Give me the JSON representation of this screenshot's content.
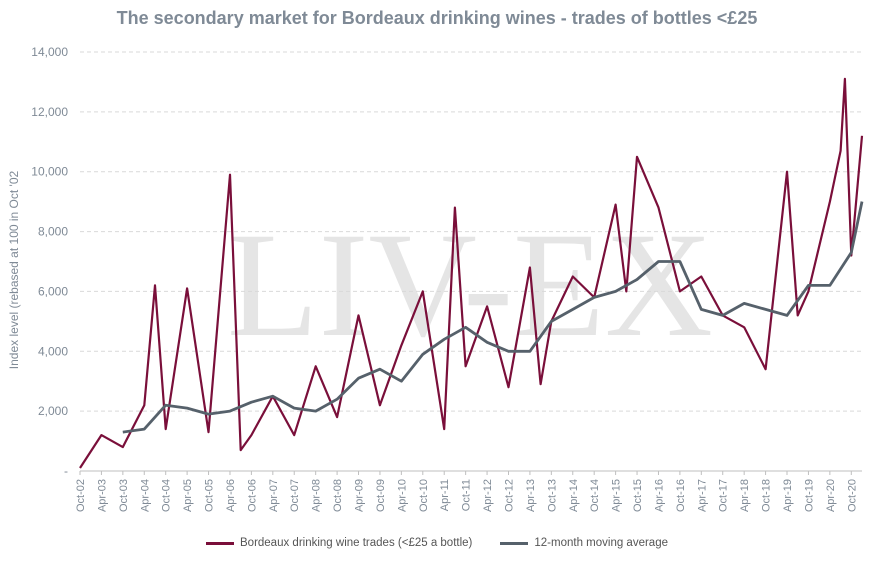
{
  "chart_data": {
    "type": "line",
    "title": "The secondary market for Bordeaux drinking wines - trades of bottles <£25",
    "ylabel": "Index level (rebased at 100 in Oct '02",
    "xlabel": "",
    "ylim": [
      0,
      14000
    ],
    "y_ticks": [
      "-",
      "2,000",
      "4,000",
      "6,000",
      "8,000",
      "10,000",
      "12,000",
      "14,000"
    ],
    "x_ticks": [
      "Oct-02",
      "Apr-03",
      "Oct-03",
      "Apr-04",
      "Oct-04",
      "Apr-05",
      "Oct-05",
      "Apr-06",
      "Oct-06",
      "Apr-07",
      "Oct-07",
      "Apr-08",
      "Oct-08",
      "Apr-09",
      "Oct-09",
      "Apr-10",
      "Oct-10",
      "Apr-11",
      "Oct-11",
      "Apr-12",
      "Oct-12",
      "Apr-13",
      "Oct-13",
      "Apr-14",
      "Oct-14",
      "Apr-15",
      "Oct-15",
      "Apr-16",
      "Oct-16",
      "Apr-17",
      "Oct-17",
      "Apr-18",
      "Oct-18",
      "Apr-19",
      "Oct-19",
      "Apr-20",
      "Oct-20"
    ],
    "grid": "horizontal-dashed",
    "legend_position": "bottom",
    "watermark": "LIV-EX",
    "series": [
      {
        "name": "Bordeaux drinking wine trades (<£25 a bottle)",
        "color": "#7a0f3a",
        "x": [
          2002.75,
          2003.25,
          2003.75,
          2004.25,
          2004.5,
          2004.75,
          2005.25,
          2005.75,
          2006.25,
          2006.5,
          2006.75,
          2007.25,
          2007.75,
          2008.25,
          2008.75,
          2009.25,
          2009.75,
          2010.25,
          2010.75,
          2011.25,
          2011.5,
          2011.75,
          2012.25,
          2012.75,
          2013.25,
          2013.5,
          2013.75,
          2014.25,
          2014.75,
          2015.25,
          2015.5,
          2015.75,
          2016.25,
          2016.75,
          2017.25,
          2017.75,
          2018.25,
          2018.75,
          2019.25,
          2019.5,
          2019.75,
          2020.25,
          2020.5,
          2020.6,
          2020.75,
          2021.0
        ],
        "values": [
          100,
          1200,
          800,
          2200,
          6200,
          1400,
          6100,
          1300,
          9900,
          700,
          1200,
          2500,
          1200,
          3500,
          1800,
          5200,
          2200,
          4200,
          6000,
          1400,
          8800,
          3500,
          5500,
          2800,
          6800,
          2900,
          5000,
          6500,
          5800,
          8900,
          6000,
          10500,
          8800,
          6000,
          6500,
          5200,
          4800,
          3400,
          10000,
          5200,
          6000,
          9000,
          10700,
          13100,
          7200,
          11200
        ]
      },
      {
        "name": "12-month moving average",
        "color": "#56616b",
        "x": [
          2003.75,
          2004.25,
          2004.75,
          2005.25,
          2005.75,
          2006.25,
          2006.75,
          2007.25,
          2007.75,
          2008.25,
          2008.75,
          2009.25,
          2009.75,
          2010.25,
          2010.75,
          2011.25,
          2011.75,
          2012.25,
          2012.75,
          2013.25,
          2013.75,
          2014.25,
          2014.75,
          2015.25,
          2015.75,
          2016.25,
          2016.75,
          2017.25,
          2017.75,
          2018.25,
          2018.75,
          2019.25,
          2019.75,
          2020.25,
          2020.75,
          2021.0
        ],
        "values": [
          1300,
          1400,
          2200,
          2100,
          1900,
          2000,
          2300,
          2500,
          2100,
          2000,
          2400,
          3100,
          3400,
          3000,
          3900,
          4400,
          4800,
          4300,
          4000,
          4000,
          5000,
          5400,
          5800,
          6000,
          6400,
          7000,
          7000,
          5400,
          5200,
          5600,
          5400,
          5200,
          6200,
          6200,
          7300,
          9000
        ]
      }
    ]
  }
}
